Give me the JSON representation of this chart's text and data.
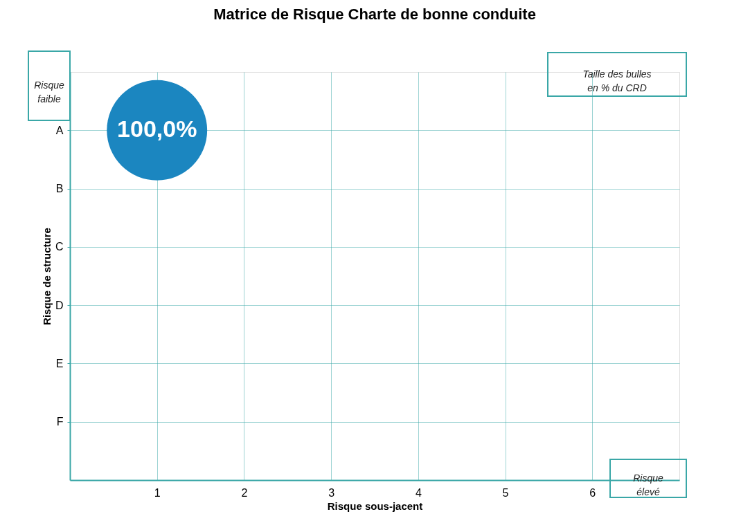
{
  "chart_data": {
    "type": "bubble",
    "title": "Matrice de Risque Charte de bonne conduite",
    "xlabel": "Risque sous-jacent",
    "ylabel": "Risque de structure",
    "annotations": [
      "Risque faible",
      "Taille des bulles en % du CRD",
      "Risque élevé"
    ],
    "orientation": "horizontal",
    "categories": [
      "A",
      "B",
      "C",
      "D",
      "E",
      "F"
    ],
    "series": [
      {
        "color": "#1b86c0",
        "values": [
          1,
          null,
          null,
          null,
          null,
          null
        ],
        "sizes": [
          1,
          null,
          null,
          null,
          null,
          null
        ],
        "value_labels": [
          "100,0%",
          null,
          null,
          null,
          null,
          null
        ]
      }
    ],
    "xlim": [
      0,
      7
    ],
    "xticks": [
      1,
      2,
      3,
      4,
      5,
      6
    ],
    "grid": true
  }
}
